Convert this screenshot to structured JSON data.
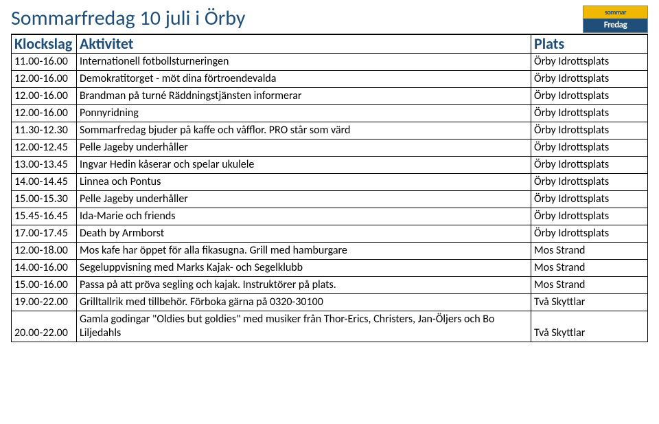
{
  "title": "Sommarfredag 10 juli i Örby",
  "logo": {
    "top": "sommar",
    "bot": "Fredag"
  },
  "headers": {
    "time": "Klockslag",
    "activity": "Aktivitet",
    "place": "Plats"
  },
  "rows": [
    {
      "time": "11.00-16.00",
      "activity": "Internationell fotbollsturneringen",
      "place": "Örby Idrottsplats"
    },
    {
      "time": "12.00-16.00",
      "activity": "Demokratitorget - möt dina förtroendevalda",
      "place": "Örby Idrottsplats"
    },
    {
      "time": "12.00-16.00",
      "activity": "Brandman på turné   Räddningstjänsten informerar",
      "place": "Örby Idrottsplats"
    },
    {
      "time": "12.00-16.00",
      "activity": "Ponnyridning",
      "place": "Örby Idrottsplats"
    },
    {
      "time": "11.30-12.30",
      "activity": "Sommarfredag bjuder på kaffe och våfflor. PRO står som värd",
      "place": "Örby Idrottsplats"
    },
    {
      "time": "12.00-12.45",
      "activity": "Pelle Jageby underhåller",
      "place": "Örby Idrottsplats"
    },
    {
      "time": "13.00-13.45",
      "activity": "Ingvar Hedin kåserar och spelar ukulele",
      "place": "Örby Idrottsplats"
    },
    {
      "time": "14.00-14.45",
      "activity": "Linnea och Pontus",
      "place": "Örby Idrottsplats"
    },
    {
      "time": "15.00-15.30",
      "activity": "Pelle Jageby underhåller",
      "place": "Örby Idrottsplats"
    },
    {
      "time": "15.45-16.45",
      "activity": "Ida-Marie och friends",
      "place": "Örby Idrottsplats"
    },
    {
      "time": "17.00-17.45",
      "activity": "Death by Armborst",
      "place": "Örby Idrottsplats"
    },
    {
      "time": "12.00-18.00",
      "activity": "Mos kafe har öppet för alla fikasugna. Grill med hamburgare",
      "place": "Mos Strand"
    },
    {
      "time": "14.00-16.00",
      "activity": "Segeluppvisning  med Marks Kajak- och Segelklubb",
      "place": "Mos Strand"
    },
    {
      "time": "15.00-16.00",
      "activity": "Passa på att pröva segling och kajak. Instruktörer på plats.",
      "place": "Mos Strand"
    },
    {
      "time": "19.00-22.00",
      "activity": "Grilltallrik med tillbehör. Förboka gärna på 0320-30100",
      "place": "Två Skyttlar"
    },
    {
      "time": "20.00-22.00",
      "activity": "Gamla godingar \"Oldies but goldies\" med musiker från Thor-Erics, Christers, Jan-Öljers och Bo Liljedahls",
      "place": "Två Skyttlar"
    }
  ],
  "colors": {
    "heading": "#1f4e79",
    "logo_top_bg": "#f0b800",
    "logo_bot_bg": "#1f4e79"
  }
}
